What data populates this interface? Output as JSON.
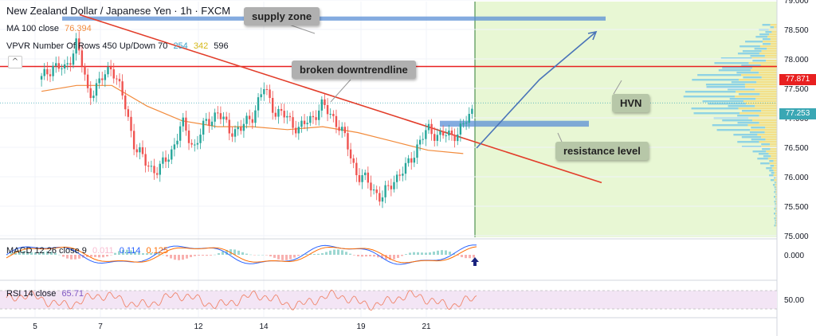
{
  "header": {
    "symbol": "New Zealand Dollar / Japanese Yen · 1h · FXCM",
    "ma_label": "MA 100 close",
    "ma_value": "76.394",
    "vpvr_label": "VPVR Number Of Rows 450 Up/Down 70",
    "vpvr_values": [
      "254",
      "342",
      "596"
    ],
    "macd_label": "MACD 12 26 close 9",
    "macd_values": [
      "0.011",
      "0.114",
      "0.125"
    ],
    "rsi_label": "RSI 14 close",
    "rsi_value": "65.71"
  },
  "annotations": {
    "supply_zone": "supply zone",
    "broken_downtrendline": "broken downtrendline",
    "hvn": "HVN",
    "resistance_level": "resistance level"
  },
  "price_labels": {
    "hvn_price": "77.871",
    "current_price": "77.253"
  },
  "colors": {
    "up_candle": "#26a69a",
    "down_candle": "#ef5350",
    "ma": "#f28b3c",
    "forecast_area": "#e8f7d4",
    "zone": "#5b8fd6",
    "trendline": "#e23d2a",
    "hvn_line": "#e82020",
    "rsi_band": "#f3e5f5"
  },
  "chart_data": [
    {
      "type": "candlestick",
      "title": "New Zealand Dollar / Japanese Yen · 1h · FXCM",
      "x_tick_labels": [
        "5",
        "7",
        "12",
        "14",
        "19",
        "21"
      ],
      "y_tick_labels": [
        "79.000",
        "78.500",
        "78.000",
        "77.500",
        "77.000",
        "76.500",
        "76.000",
        "75.500",
        "75.000"
      ],
      "ylim": [
        75.0,
        79.0
      ],
      "close_path": [
        [
          3,
          77.65
        ],
        [
          4,
          77.9
        ],
        [
          5,
          77.8
        ],
        [
          6,
          78.3
        ],
        [
          7,
          77.4
        ],
        [
          8,
          77.6
        ],
        [
          9,
          77.9
        ],
        [
          10,
          77.3
        ],
        [
          11,
          76.5
        ],
        [
          12,
          76.2
        ],
        [
          13,
          76.1
        ],
        [
          14,
          76.4
        ],
        [
          15,
          76.9
        ],
        [
          16,
          76.5
        ],
        [
          17,
          76.9
        ],
        [
          18,
          77.1
        ],
        [
          19,
          76.8
        ],
        [
          20,
          76.8
        ],
        [
          21,
          77.05
        ],
        [
          22,
          77.5
        ],
        [
          23,
          77.1
        ],
        [
          24,
          77.0
        ],
        [
          25,
          76.8
        ],
        [
          26,
          77.0
        ],
        [
          27,
          77.2
        ],
        [
          28,
          77.0
        ],
        [
          29,
          76.6
        ],
        [
          30,
          76.0
        ],
        [
          31,
          75.9
        ],
        [
          32,
          75.6
        ],
        [
          33,
          75.95
        ],
        [
          34,
          76.1
        ],
        [
          35,
          76.5
        ],
        [
          36,
          76.8
        ],
        [
          37,
          76.7
        ],
        [
          38,
          76.7
        ],
        [
          39,
          76.85
        ],
        [
          40,
          77.2
        ]
      ],
      "moving_average_path": [
        [
          3,
          77.45
        ],
        [
          6,
          77.55
        ],
        [
          9,
          77.55
        ],
        [
          12,
          77.2
        ],
        [
          15,
          76.95
        ],
        [
          18,
          76.85
        ],
        [
          21,
          76.85
        ],
        [
          24,
          76.8
        ],
        [
          27,
          76.85
        ],
        [
          30,
          76.75
        ],
        [
          33,
          76.6
        ],
        [
          36,
          76.45
        ],
        [
          39,
          76.394
        ]
      ],
      "supply_zone": [
        78.65,
        78.72
      ],
      "resistance_level": [
        76.85,
        76.95
      ],
      "hvn_level": 77.871,
      "last_price": 77.253
    },
    {
      "type": "line",
      "title": "MACD 12 26 close 9",
      "y_tick_labels": [
        "0.000"
      ],
      "series": [
        {
          "name": "MACD",
          "value": 0.114
        },
        {
          "name": "Signal",
          "value": 0.125
        },
        {
          "name": "Histogram",
          "value": 0.011
        }
      ]
    },
    {
      "type": "line",
      "title": "RSI 14 close",
      "y_tick_labels": [
        "50.00"
      ],
      "series": [
        {
          "name": "RSI",
          "value": 65.71
        }
      ]
    }
  ]
}
